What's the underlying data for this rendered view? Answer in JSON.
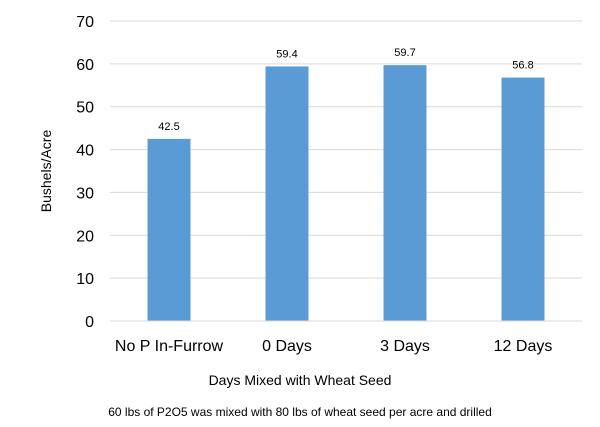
{
  "chart_data": {
    "type": "bar",
    "title": "",
    "xlabel": "Days Mixed with Wheat Seed",
    "ylabel": "Bushels/Acre",
    "categories": [
      "No P In-Furrow",
      "0 Days",
      "3 Days",
      "12 Days"
    ],
    "values": [
      42.5,
      59.4,
      59.7,
      56.8
    ],
    "value_labels": [
      "42.5",
      "59.4",
      "59.7",
      "56.8"
    ],
    "ylim": [
      0,
      70
    ],
    "yticks": [
      0,
      10,
      20,
      30,
      40,
      50,
      60,
      70
    ],
    "grid": true,
    "legend": "none",
    "bar_color": "#5b9bd5",
    "grid_color": "#d9d9d9",
    "footnote": "60 lbs of P2O5 was mixed with 80 lbs of wheat seed per acre and drilled"
  }
}
